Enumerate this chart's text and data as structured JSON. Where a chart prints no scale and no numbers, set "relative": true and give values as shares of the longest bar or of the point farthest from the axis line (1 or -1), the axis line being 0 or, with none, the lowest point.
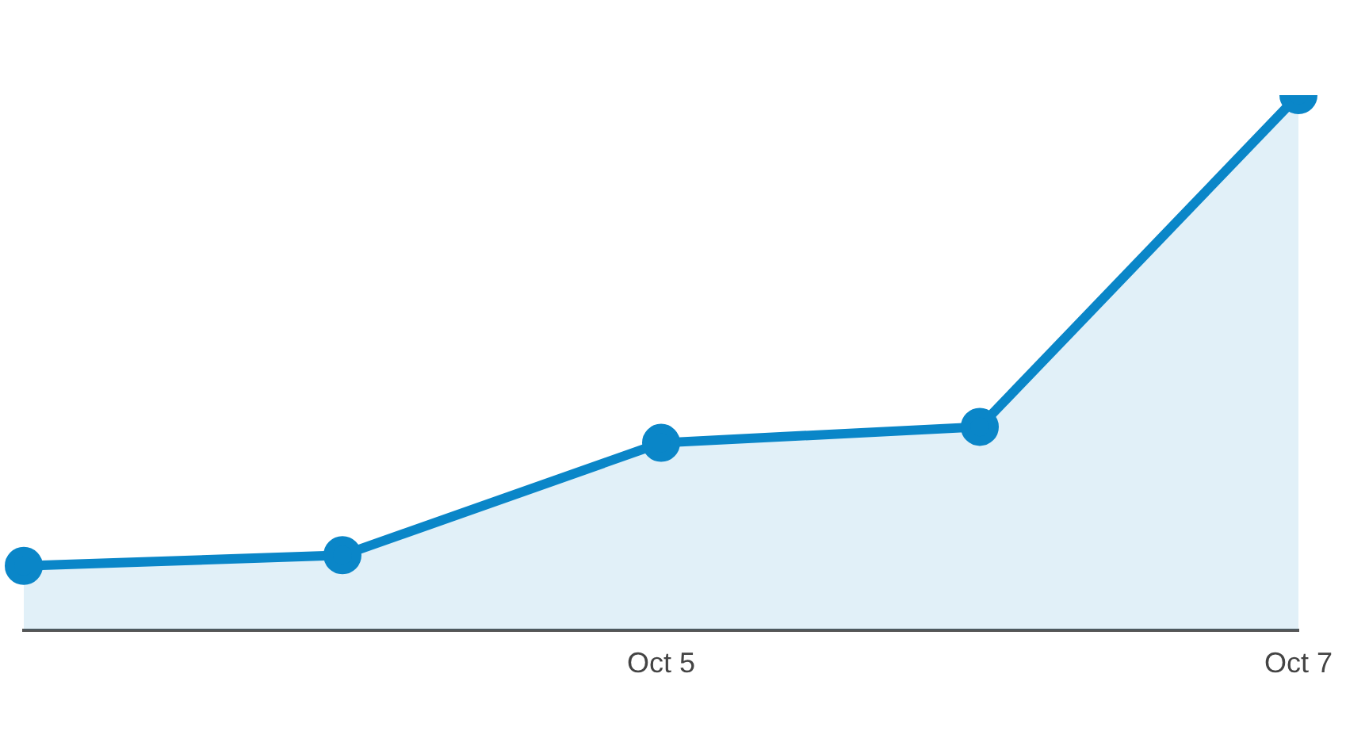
{
  "chart_data": {
    "type": "area",
    "relative": true,
    "categories": [
      null,
      null,
      "Oct 5",
      null,
      "Oct 7"
    ],
    "series": [
      {
        "color": "#0a86c8",
        "values": [
          0.12,
          0.14,
          0.35,
          0.38,
          1
        ]
      }
    ],
    "marker": "circle",
    "legend": false,
    "grid": false
  }
}
